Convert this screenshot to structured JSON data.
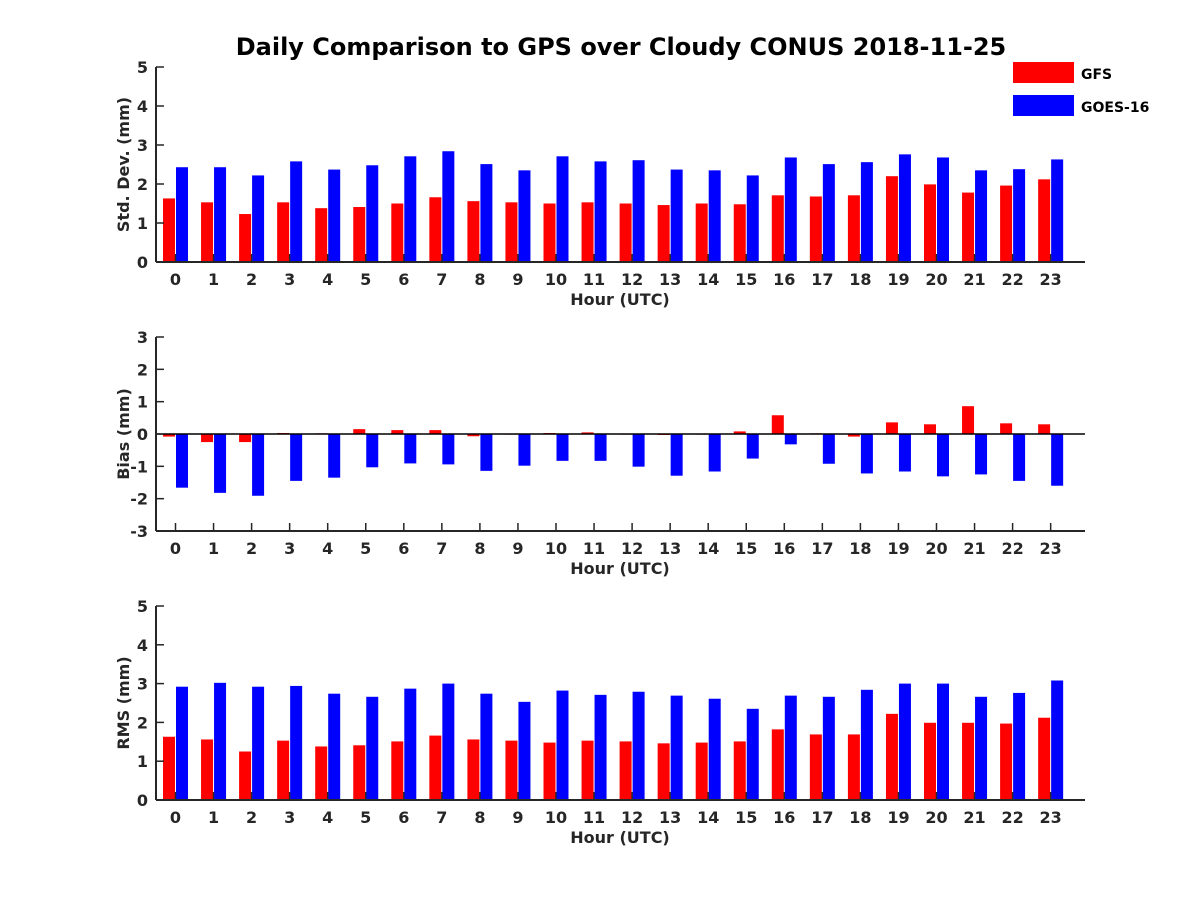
{
  "title": "Daily Comparison to GPS over Cloudy CONUS 2018-11-25",
  "legend": [
    {
      "label": "GFS",
      "color": "#ff0000"
    },
    {
      "label": "GOES-16",
      "color": "#0000ff"
    }
  ],
  "chart_data": [
    {
      "type": "bar",
      "title": "Daily Comparison to GPS over Cloudy CONUS 2018-11-25",
      "xlabel": "Hour (UTC)",
      "ylabel": "Std. Dev. (mm)",
      "ylim": [
        0,
        5
      ],
      "yticks": [
        "0",
        "1",
        "2",
        "3",
        "4",
        "5"
      ],
      "categories": [
        "0",
        "1",
        "2",
        "3",
        "4",
        "5",
        "6",
        "7",
        "8",
        "9",
        "10",
        "11",
        "12",
        "13",
        "14",
        "15",
        "16",
        "17",
        "18",
        "19",
        "20",
        "21",
        "22",
        "23"
      ],
      "legend_position": "top-right",
      "grid": false,
      "series": [
        {
          "name": "GFS",
          "color": "#ff0000",
          "values": [
            1.63,
            1.53,
            1.23,
            1.53,
            1.38,
            1.41,
            1.5,
            1.66,
            1.56,
            1.53,
            1.5,
            1.53,
            1.5,
            1.46,
            1.5,
            1.48,
            1.71,
            1.68,
            1.71,
            2.2,
            1.99,
            1.78,
            1.96,
            2.12
          ]
        },
        {
          "name": "GOES-16",
          "color": "#0000ff",
          "values": [
            2.43,
            2.43,
            2.22,
            2.58,
            2.37,
            2.48,
            2.71,
            2.84,
            2.51,
            2.35,
            2.71,
            2.58,
            2.61,
            2.37,
            2.35,
            2.22,
            2.68,
            2.51,
            2.56,
            2.76,
            2.68,
            2.35,
            2.38,
            2.63
          ]
        }
      ]
    },
    {
      "type": "bar",
      "xlabel": "Hour (UTC)",
      "ylabel": "Bias (mm)",
      "ylim": [
        -3,
        3
      ],
      "yticks": [
        "-3",
        "-2",
        "-1",
        "0",
        "1",
        "2",
        "3"
      ],
      "categories": [
        "0",
        "1",
        "2",
        "3",
        "4",
        "5",
        "6",
        "7",
        "8",
        "9",
        "10",
        "11",
        "12",
        "13",
        "14",
        "15",
        "16",
        "17",
        "18",
        "19",
        "20",
        "21",
        "22",
        "23"
      ],
      "grid": false,
      "series": [
        {
          "name": "GFS",
          "color": "#ff0000",
          "values": [
            -0.08,
            -0.25,
            -0.25,
            0.03,
            0.02,
            0.15,
            0.12,
            0.12,
            -0.07,
            0.0,
            0.03,
            0.05,
            0.0,
            -0.03,
            0.0,
            0.08,
            0.58,
            0.02,
            -0.08,
            0.36,
            0.3,
            0.86,
            0.33,
            0.3
          ]
        },
        {
          "name": "GOES-16",
          "color": "#0000ff",
          "values": [
            -1.66,
            -1.82,
            -1.91,
            -1.45,
            -1.35,
            -1.03,
            -0.91,
            -0.94,
            -1.14,
            -0.98,
            -0.83,
            -0.83,
            -1.01,
            -1.29,
            -1.16,
            -0.76,
            -0.32,
            -0.92,
            -1.22,
            -1.16,
            -1.31,
            -1.25,
            -1.45,
            -1.6
          ]
        }
      ]
    },
    {
      "type": "bar",
      "xlabel": "Hour (UTC)",
      "ylabel": "RMS (mm)",
      "ylim": [
        0,
        5
      ],
      "yticks": [
        "0",
        "1",
        "2",
        "3",
        "4",
        "5"
      ],
      "categories": [
        "0",
        "1",
        "2",
        "3",
        "4",
        "5",
        "6",
        "7",
        "8",
        "9",
        "10",
        "11",
        "12",
        "13",
        "14",
        "15",
        "16",
        "17",
        "18",
        "19",
        "20",
        "21",
        "22",
        "23"
      ],
      "grid": false,
      "series": [
        {
          "name": "GFS",
          "color": "#ff0000",
          "values": [
            1.63,
            1.56,
            1.25,
            1.53,
            1.38,
            1.41,
            1.51,
            1.66,
            1.56,
            1.53,
            1.48,
            1.53,
            1.51,
            1.46,
            1.48,
            1.51,
            1.82,
            1.69,
            1.69,
            2.22,
            1.99,
            1.99,
            1.97,
            2.12
          ]
        },
        {
          "name": "GOES-16",
          "color": "#0000ff",
          "values": [
            2.92,
            3.02,
            2.92,
            2.94,
            2.74,
            2.66,
            2.87,
            3.0,
            2.74,
            2.53,
            2.82,
            2.71,
            2.79,
            2.69,
            2.61,
            2.35,
            2.69,
            2.66,
            2.84,
            3.0,
            3.0,
            2.66,
            2.76,
            3.08
          ]
        }
      ]
    }
  ]
}
